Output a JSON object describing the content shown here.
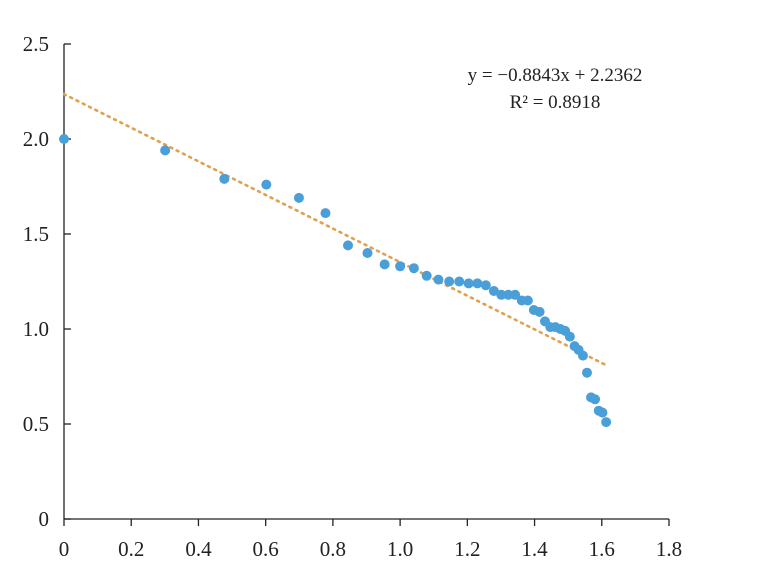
{
  "chart_data": {
    "type": "scatter",
    "title": "",
    "xlabel": "",
    "ylabel": "",
    "xlim": [
      0,
      1.8
    ],
    "ylim": [
      0,
      2.5
    ],
    "x_ticks": [
      "0",
      "0.2",
      "0.4",
      "0.6",
      "0.8",
      "1.0",
      "1.2",
      "1.4",
      "1.6",
      "1.8"
    ],
    "y_ticks": [
      "0",
      "0.5",
      "1.0",
      "1.5",
      "2.0",
      "2.5"
    ],
    "grid": false,
    "legend": "none",
    "series": [
      {
        "color": "#4a9fd8",
        "points": [
          [
            0.0,
            2.0
          ],
          [
            0.301,
            1.94
          ],
          [
            0.477,
            1.79
          ],
          [
            0.602,
            1.76
          ],
          [
            0.699,
            1.69
          ],
          [
            0.778,
            1.61
          ],
          [
            0.845,
            1.44
          ],
          [
            0.903,
            1.4
          ],
          [
            0.954,
            1.34
          ],
          [
            1.0,
            1.33
          ],
          [
            1.041,
            1.32
          ],
          [
            1.079,
            1.28
          ],
          [
            1.114,
            1.26
          ],
          [
            1.146,
            1.25
          ],
          [
            1.176,
            1.25
          ],
          [
            1.204,
            1.24
          ],
          [
            1.23,
            1.24
          ],
          [
            1.255,
            1.23
          ],
          [
            1.279,
            1.2
          ],
          [
            1.301,
            1.18
          ],
          [
            1.322,
            1.18
          ],
          [
            1.342,
            1.18
          ],
          [
            1.362,
            1.15
          ],
          [
            1.38,
            1.15
          ],
          [
            1.398,
            1.1
          ],
          [
            1.415,
            1.09
          ],
          [
            1.431,
            1.04
          ],
          [
            1.447,
            1.01
          ],
          [
            1.462,
            1.01
          ],
          [
            1.477,
            1.0
          ],
          [
            1.491,
            0.99
          ],
          [
            1.505,
            0.96
          ],
          [
            1.519,
            0.91
          ],
          [
            1.531,
            0.89
          ],
          [
            1.544,
            0.86
          ],
          [
            1.556,
            0.77
          ],
          [
            1.568,
            0.64
          ],
          [
            1.58,
            0.63
          ],
          [
            1.591,
            0.57
          ],
          [
            1.602,
            0.56
          ],
          [
            1.613,
            0.51
          ]
        ]
      }
    ],
    "trendline": {
      "slope": -0.8843,
      "intercept": 2.2362,
      "x_range": [
        0,
        1.613
      ],
      "color": "#e0a050",
      "style": "dotted"
    },
    "annotations": {
      "equation": "y = −0.8843x + 2.2362",
      "r_squared": "R² = 0.8918"
    }
  }
}
